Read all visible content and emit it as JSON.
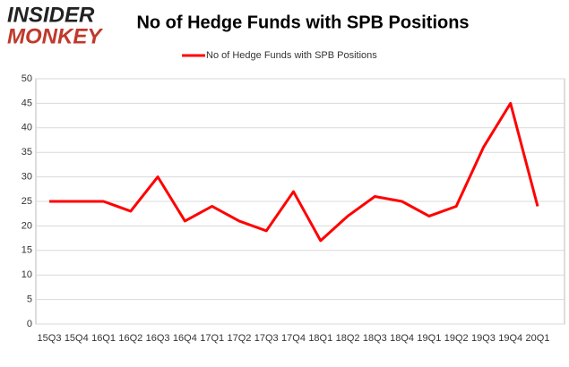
{
  "logo": {
    "line1": "INSIDER",
    "line2": "MONKEY"
  },
  "chart_data": {
    "type": "line",
    "title": "No of Hedge Funds with SPB Positions",
    "categories": [
      "15Q3",
      "15Q4",
      "16Q1",
      "16Q2",
      "16Q3",
      "16Q4",
      "17Q1",
      "17Q2",
      "17Q3",
      "17Q4",
      "18Q1",
      "18Q2",
      "18Q3",
      "18Q4",
      "19Q1",
      "19Q2",
      "19Q3",
      "19Q4",
      "20Q1"
    ],
    "series": [
      {
        "name": "No of Hedge Funds with SPB Positions",
        "color": "#ff0000",
        "values": [
          25,
          25,
          25,
          23,
          30,
          21,
          24,
          21,
          19,
          27,
          17,
          22,
          26,
          25,
          22,
          24,
          36,
          45,
          24
        ]
      }
    ],
    "ylim": [
      0,
      50
    ],
    "yticks": [
      0,
      5,
      10,
      15,
      20,
      25,
      30,
      35,
      40,
      45,
      50
    ],
    "grid": true,
    "legend": "top"
  }
}
